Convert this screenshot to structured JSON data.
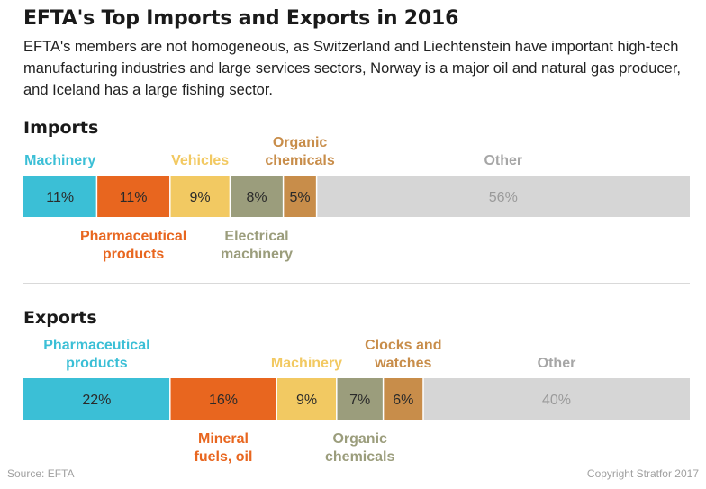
{
  "title": "EFTA's Top Imports and Exports in 2016",
  "subtitle": "EFTA's members are not homogeneous, as Switzerland and Liechtenstein have important high-tech manufacturing industries and large services sectors, Norway is a major oil and natural gas producer, and Iceland has a large fishing sector.",
  "source": "Source: EFTA",
  "copyright": "Copyright Stratfor 2017",
  "chart_data": [
    {
      "type": "bar",
      "orientation": "stacked-horizontal",
      "title": "Imports",
      "unit": "%",
      "segments": [
        {
          "label": [
            "Machinery"
          ],
          "value": 11,
          "value_label": "11%",
          "color": "#3bbfd6",
          "label_color": "#3bbfd6",
          "label_position": "above"
        },
        {
          "label": [
            "Pharmaceutical",
            "products"
          ],
          "value": 11,
          "value_label": "11%",
          "color": "#e8661f",
          "label_color": "#e8661f",
          "label_position": "below"
        },
        {
          "label": [
            "Vehicles"
          ],
          "value": 9,
          "value_label": "9%",
          "color": "#f2c962",
          "label_color": "#f2c962",
          "label_position": "above"
        },
        {
          "label": [
            "Electrical",
            "machinery"
          ],
          "value": 8,
          "value_label": "8%",
          "color": "#9b9d7c",
          "label_color": "#9b9d7c",
          "label_position": "below"
        },
        {
          "label": [
            "Organic",
            "chemicals"
          ],
          "value": 5,
          "value_label": "5%",
          "color": "#c88d4a",
          "label_color": "#c88d4a",
          "label_position": "above"
        },
        {
          "label": [
            "Other"
          ],
          "value": 56,
          "value_label": "56%",
          "color": "#d6d6d6",
          "label_color": "#a6a6a6",
          "label_position": "above"
        }
      ]
    },
    {
      "type": "bar",
      "orientation": "stacked-horizontal",
      "title": "Exports",
      "unit": "%",
      "segments": [
        {
          "label": [
            "Pharmaceutical",
            "products"
          ],
          "value": 22,
          "value_label": "22%",
          "color": "#3bbfd6",
          "label_color": "#3bbfd6",
          "label_position": "above"
        },
        {
          "label": [
            "Mineral",
            "fuels, oil"
          ],
          "value": 16,
          "value_label": "16%",
          "color": "#e8661f",
          "label_color": "#e8661f",
          "label_position": "below"
        },
        {
          "label": [
            "Machinery"
          ],
          "value": 9,
          "value_label": "9%",
          "color": "#f2c962",
          "label_color": "#f2c962",
          "label_position": "above"
        },
        {
          "label": [
            "Organic",
            "chemicals"
          ],
          "value": 7,
          "value_label": "7%",
          "color": "#9b9d7c",
          "label_color": "#9b9d7c",
          "label_position": "below"
        },
        {
          "label": [
            "Clocks and",
            "watches"
          ],
          "value": 6,
          "value_label": "6%",
          "color": "#c88d4a",
          "label_color": "#c88d4a",
          "label_position": "above"
        },
        {
          "label": [
            "Other"
          ],
          "value": 40,
          "value_label": "40%",
          "color": "#d6d6d6",
          "label_color": "#a6a6a6",
          "label_position": "above"
        }
      ]
    }
  ]
}
